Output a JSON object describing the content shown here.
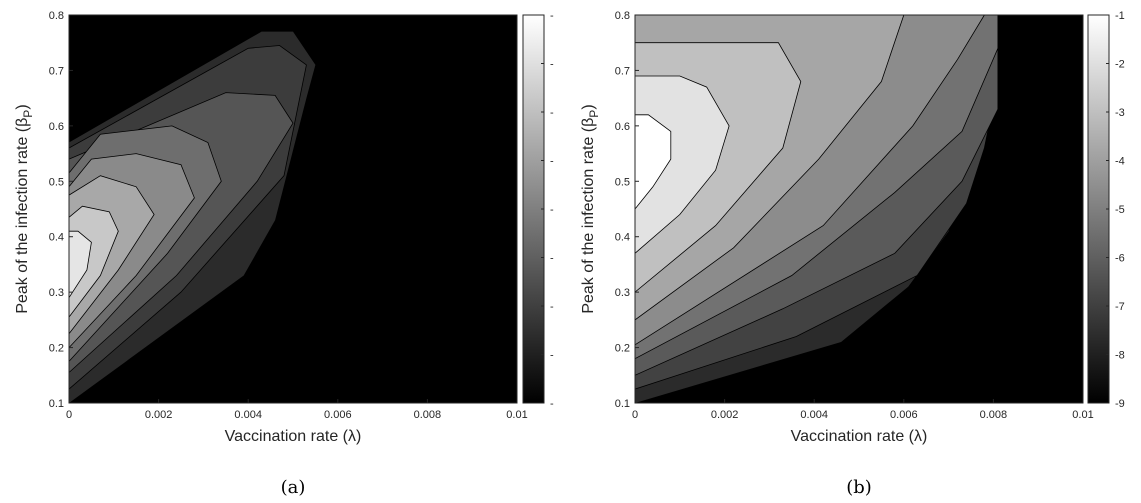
{
  "chart_data": [
    {
      "type": "heatmap",
      "subtype": "filled-contour",
      "caption": "(a)",
      "xlabel": "Vaccination rate (λ)",
      "ylabel": "Peak of the infection rate (β",
      "ylabel_sub": "P",
      "ylabel_close": ")",
      "xlim": [
        0,
        0.01
      ],
      "ylim": [
        0.1,
        0.8
      ],
      "x_ticks": [
        "0",
        "0.002",
        "0.004",
        "0.006",
        "0.008",
        "0.01"
      ],
      "y_ticks": [
        "0.1",
        "0.2",
        "0.3",
        "0.4",
        "0.5",
        "0.6",
        "0.7",
        "0.8"
      ],
      "colormap": "gray",
      "colorbar_ticks": [
        "-",
        "-",
        "-",
        "-",
        "-",
        "-",
        "-",
        "-",
        "-"
      ],
      "contours": [
        {
          "level": 1,
          "color": "#2b2b2b",
          "points": [
            [
              0,
              0.1
            ],
            [
              0.0039,
              0.33
            ],
            [
              0.0046,
              0.43
            ],
            [
              0.0053,
              0.65
            ],
            [
              0.0055,
              0.71
            ],
            [
              0.005,
              0.77
            ],
            [
              0.0043,
              0.77
            ],
            [
              0,
              0.57
            ]
          ]
        },
        {
          "level": 2,
          "color": "#3c3c3c",
          "points": [
            [
              0,
              0.125
            ],
            [
              0.0025,
              0.3
            ],
            [
              0.0048,
              0.51
            ],
            [
              0.0053,
              0.71
            ],
            [
              0.0047,
              0.745
            ],
            [
              0.004,
              0.74
            ],
            [
              0,
              0.56
            ]
          ]
        },
        {
          "level": 3,
          "color": "#555555",
          "points": [
            [
              0,
              0.155
            ],
            [
              0.0024,
              0.33
            ],
            [
              0.0042,
              0.5
            ],
            [
              0.005,
              0.605
            ],
            [
              0.0046,
              0.655
            ],
            [
              0.0035,
              0.66
            ],
            [
              0,
              0.54
            ]
          ]
        },
        {
          "level": 4,
          "color": "#6e6e6e",
          "points": [
            [
              0,
              0.175
            ],
            [
              0.0022,
              0.37
            ],
            [
              0.0034,
              0.5
            ],
            [
              0.0031,
              0.57
            ],
            [
              0.0023,
              0.6
            ],
            [
              0.0007,
              0.585
            ],
            [
              0,
              0.515
            ]
          ]
        },
        {
          "level": 5,
          "color": "#8a8a8a",
          "points": [
            [
              0,
              0.2
            ],
            [
              0.0015,
              0.33
            ],
            [
              0.0028,
              0.47
            ],
            [
              0.0025,
              0.53
            ],
            [
              0.0015,
              0.55
            ],
            [
              0.0005,
              0.54
            ],
            [
              0,
              0.49
            ]
          ]
        },
        {
          "level": 6,
          "color": "#a8a8a8",
          "points": [
            [
              0,
              0.225
            ],
            [
              0.0011,
              0.34
            ],
            [
              0.0019,
              0.44
            ],
            [
              0.0015,
              0.49
            ],
            [
              0.0007,
              0.51
            ],
            [
              0,
              0.475
            ]
          ]
        },
        {
          "level": 7,
          "color": "#c8c8c8",
          "points": [
            [
              0,
              0.255
            ],
            [
              0.0007,
              0.33
            ],
            [
              0.0011,
              0.41
            ],
            [
              0.0009,
              0.445
            ],
            [
              0.0003,
              0.455
            ],
            [
              0,
              0.435
            ]
          ]
        },
        {
          "level": 8,
          "color": "#e5e5e5",
          "points": [
            [
              0,
              0.29
            ],
            [
              0.0004,
              0.34
            ],
            [
              0.0005,
              0.39
            ],
            [
              0.0002,
              0.41
            ],
            [
              0,
              0.41
            ]
          ]
        }
      ]
    },
    {
      "type": "heatmap",
      "subtype": "filled-contour",
      "caption": "(b)",
      "xlabel": "Vaccination rate (λ)",
      "ylabel": "Peak of the infection rate (β",
      "ylabel_sub": "P",
      "ylabel_close": ")",
      "xlim": [
        0,
        0.01
      ],
      "ylim": [
        0.1,
        0.8
      ],
      "x_ticks": [
        "0",
        "0.002",
        "0.004",
        "0.006",
        "0.008",
        "0.01"
      ],
      "y_ticks": [
        "0.1",
        "0.2",
        "0.3",
        "0.4",
        "0.5",
        "0.6",
        "0.7",
        "0.8"
      ],
      "colormap": "gray",
      "colorbar_ticks": [
        "-1",
        "-2",
        "-3",
        "-4",
        "-5",
        "-6",
        "-7",
        "-8",
        "-9"
      ],
      "contours": [
        {
          "level": -8,
          "color": "#2b2b2b",
          "points": [
            [
              0,
              0.1
            ],
            [
              0.0046,
              0.21
            ],
            [
              0.0061,
              0.31
            ],
            [
              0.007,
              0.41
            ],
            [
              0.0075,
              0.54
            ],
            [
              0.0078,
              0.64
            ],
            [
              0.0081,
              0.73
            ],
            [
              0.0081,
              0.8
            ],
            [
              0,
              0.8
            ]
          ]
        },
        {
          "level": -7,
          "color": "#424242",
          "points": [
            [
              0,
              0.125
            ],
            [
              0.0036,
              0.22
            ],
            [
              0.0063,
              0.33
            ],
            [
              0.0074,
              0.46
            ],
            [
              0.0078,
              0.56
            ],
            [
              0.008,
              0.64
            ],
            [
              0.0081,
              0.75
            ],
            [
              0.0081,
              0.8
            ],
            [
              0,
              0.8
            ]
          ]
        },
        {
          "level": -6,
          "color": "#5a5a5a",
          "points": [
            [
              0,
              0.15
            ],
            [
              0.0033,
              0.27
            ],
            [
              0.0058,
              0.37
            ],
            [
              0.0073,
              0.5
            ],
            [
              0.0081,
              0.63
            ],
            [
              0.0081,
              0.8
            ],
            [
              0,
              0.8
            ]
          ]
        },
        {
          "level": -5,
          "color": "#727272",
          "points": [
            [
              0,
              0.18
            ],
            [
              0.0035,
              0.33
            ],
            [
              0.0058,
              0.48
            ],
            [
              0.0073,
              0.59
            ],
            [
              0.0081,
              0.74
            ],
            [
              0.0081,
              0.8
            ],
            [
              0,
              0.8
            ]
          ]
        },
        {
          "level": -4,
          "color": "#8c8c8c",
          "points": [
            [
              0,
              0.205
            ],
            [
              0.0042,
              0.42
            ],
            [
              0.0062,
              0.6
            ],
            [
              0.0072,
              0.72
            ],
            [
              0.0078,
              0.8
            ],
            [
              0,
              0.8
            ]
          ]
        },
        {
          "level": -3,
          "color": "#a6a6a6",
          "points": [
            [
              0,
              0.25
            ],
            [
              0.0022,
              0.38
            ],
            [
              0.0041,
              0.54
            ],
            [
              0.0055,
              0.68
            ],
            [
              0.006,
              0.8
            ],
            [
              0,
              0.8
            ]
          ]
        },
        {
          "level": -2,
          "color": "#c0c0c0",
          "points": [
            [
              0,
              0.3
            ],
            [
              0.0018,
              0.42
            ],
            [
              0.0033,
              0.56
            ],
            [
              0.0037,
              0.68
            ],
            [
              0.0032,
              0.75
            ],
            [
              0,
              0.75
            ]
          ]
        },
        {
          "level": -1,
          "color": "#e2e2e2",
          "points": [
            [
              0,
              0.37
            ],
            [
              0.001,
              0.44
            ],
            [
              0.0018,
              0.52
            ],
            [
              0.0021,
              0.6
            ],
            [
              0.0016,
              0.67
            ],
            [
              0.001,
              0.69
            ],
            [
              0,
              0.69
            ]
          ]
        },
        {
          "level": 0,
          "color": "#ffffff",
          "points": [
            [
              0,
              0.45
            ],
            [
              0.0004,
              0.49
            ],
            [
              0.0008,
              0.54
            ],
            [
              0.0008,
              0.59
            ],
            [
              0.0003,
              0.62
            ],
            [
              0,
              0.62
            ]
          ]
        }
      ]
    }
  ]
}
